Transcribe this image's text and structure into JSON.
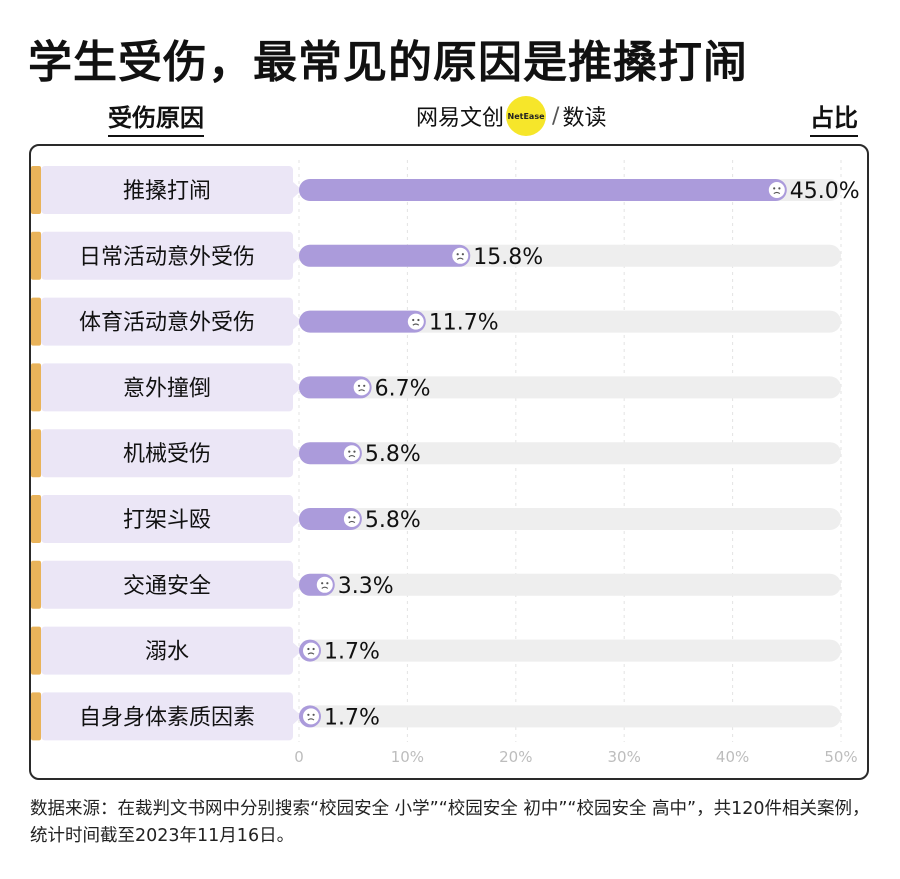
{
  "title": "学生受伤，最常见的原因是推搡打闹",
  "header": {
    "left_label": "受伤原因",
    "right_label": "占比"
  },
  "logo": {
    "part1": "网易文创",
    "badge": "NetEase",
    "part2": "数读"
  },
  "colors": {
    "bar": "#ab9bdb",
    "track": "#eeeeee",
    "label_bg": "#ebe6f6",
    "label_accent": "#e9b35a",
    "axis_text": "#bdbdbd",
    "grid": "#e3e3e3"
  },
  "chart_data": {
    "type": "bar",
    "orientation": "horizontal",
    "categories": [
      "推搡打闹",
      "日常活动意外受伤",
      "体育活动意外受伤",
      "意外撞倒",
      "机械受伤",
      "打架斗殴",
      "交通安全",
      "溺水",
      "自身身体素质因素"
    ],
    "values": [
      45.0,
      15.8,
      11.7,
      6.7,
      5.8,
      5.8,
      3.3,
      1.7,
      1.7
    ],
    "value_labels": [
      "45.0%",
      "15.8%",
      "11.7%",
      "6.7%",
      "5.8%",
      "5.8%",
      "3.3%",
      "1.7%",
      "1.7%"
    ],
    "x_ticks": [
      "0",
      "10%",
      "20%",
      "30%",
      "40%",
      "50%"
    ],
    "xlim": [
      0,
      50
    ],
    "xlabel": "",
    "ylabel": "",
    "grid": true
  },
  "source": "数据来源：在裁判文书网中分别搜索“校园安全 小学”“校园安全 初中”“校园安全 高中”，共120件相关案例，统计时间截至2023年11月16日。"
}
